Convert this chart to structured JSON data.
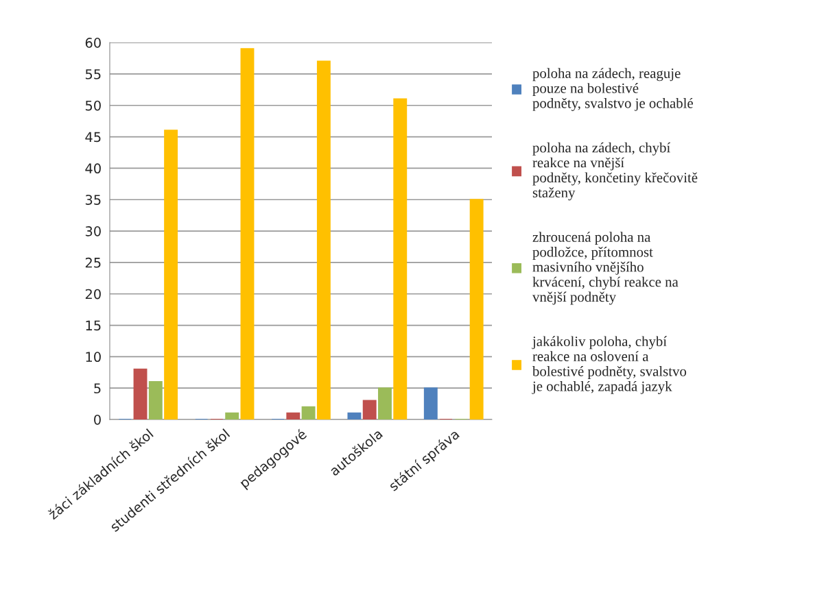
{
  "chart_data": {
    "type": "bar",
    "categories": [
      "žáci základních škol",
      "studenti středních škol",
      "pedagogové",
      "autoškola",
      "státní správa"
    ],
    "series": [
      {
        "name": "poloha na zádech, reaguje\npouze na bolestivé\npodněty, svalstvo je ochablé",
        "color": "#4f81bd",
        "values": [
          0,
          0,
          0,
          1,
          5
        ]
      },
      {
        "name": "poloha na zádech, chybí\nreakce na vnější\npodněty, končetiny křečovitě\nstaženy",
        "color": "#c0504d",
        "values": [
          8,
          0,
          1,
          3,
          0
        ]
      },
      {
        "name": "zhroucená poloha na\npodložce, přítomnost\nmasivního vnějšího\nkrvácení, chybí reakce na\nvnější podněty",
        "color": "#9bbb59",
        "values": [
          6,
          1,
          2,
          5,
          0
        ]
      },
      {
        "name": "jakákoliv poloha, chybí\nreakce na oslovení a\nbolestivé podněty, svalstvo\nje ochablé, zapadá jazyk",
        "color": "#ffc000",
        "values": [
          46,
          59,
          57,
          51,
          35
        ]
      }
    ],
    "ylim": [
      0,
      60
    ],
    "yticks": [
      0,
      5,
      10,
      15,
      20,
      25,
      30,
      35,
      40,
      45,
      50,
      55,
      60
    ],
    "grid": "y",
    "legend": "right"
  }
}
